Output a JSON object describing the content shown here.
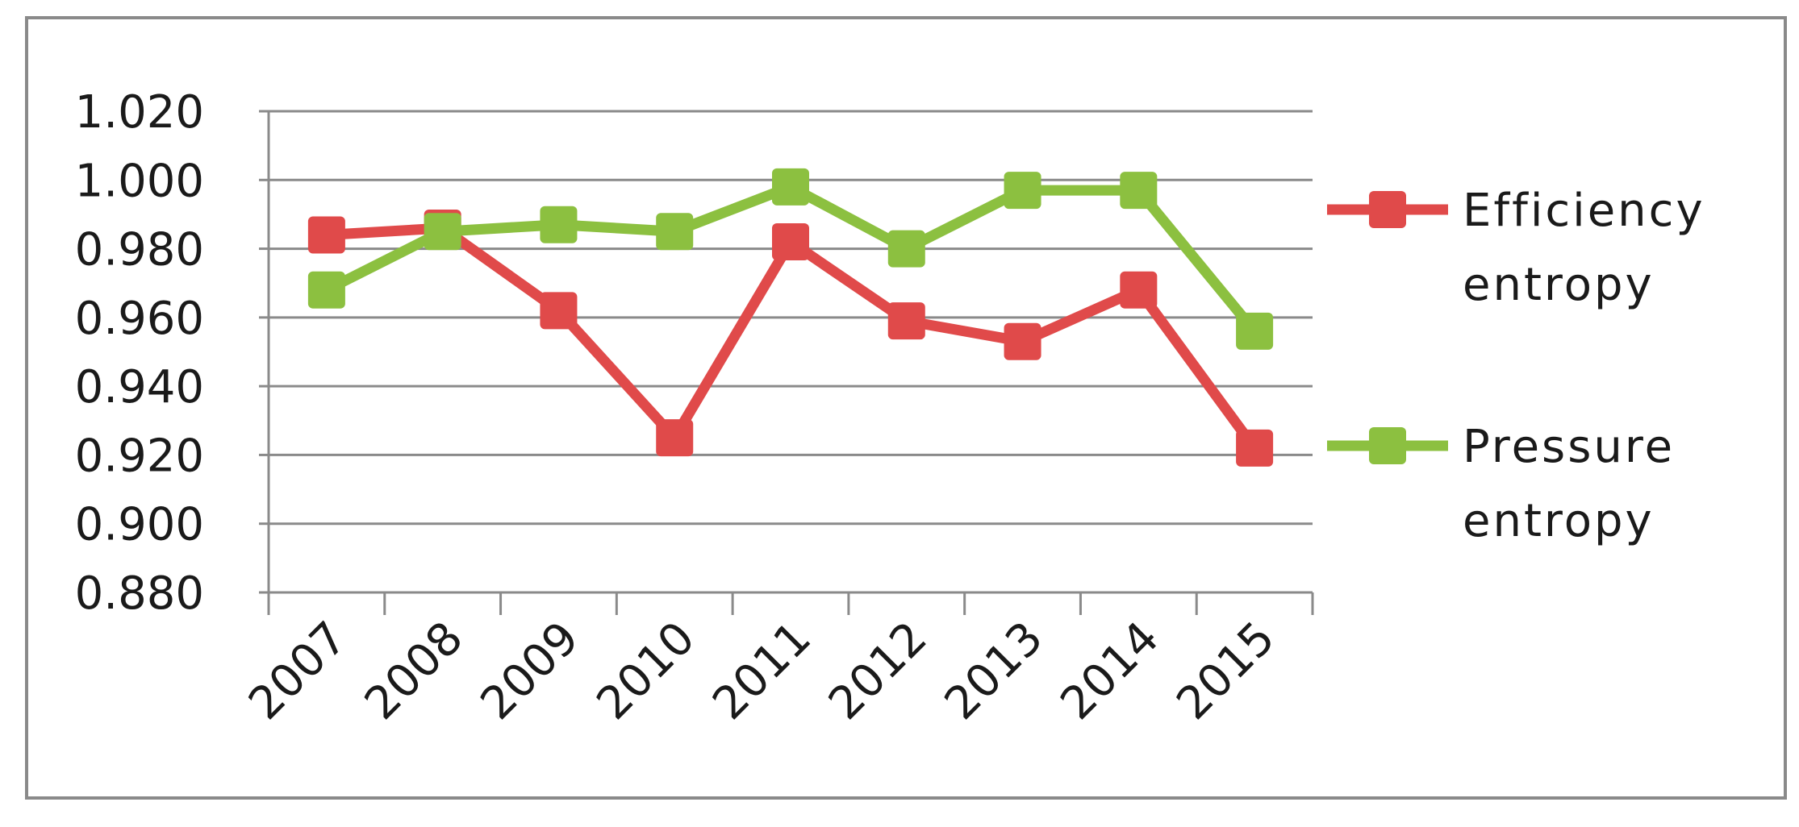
{
  "chart_data": {
    "type": "line",
    "title": "",
    "xlabel": "",
    "ylabel": "",
    "categories": [
      "2007",
      "2008",
      "2009",
      "2010",
      "2011",
      "2012",
      "2013",
      "2014",
      "2015"
    ],
    "y_ticks": [
      "0.880",
      "0.900",
      "0.920",
      "0.940",
      "0.960",
      "0.980",
      "1.000",
      "1.020"
    ],
    "ylim": [
      0.88,
      1.02
    ],
    "grid": true,
    "legend_position": "right",
    "series": [
      {
        "name": "Efficiency entropy",
        "legend_lines": [
          "Efficiency",
          "entropy"
        ],
        "color": "#e04a4a",
        "marker": "square",
        "values": [
          0.984,
          0.986,
          0.962,
          0.925,
          0.982,
          0.959,
          0.953,
          0.968,
          0.922
        ]
      },
      {
        "name": "Pressure entropy",
        "legend_lines": [
          "Pressure",
          "entropy"
        ],
        "color": "#8cc040",
        "marker": "square",
        "values": [
          0.968,
          0.985,
          0.987,
          0.985,
          0.998,
          0.98,
          0.997,
          0.997,
          0.956
        ]
      }
    ]
  }
}
